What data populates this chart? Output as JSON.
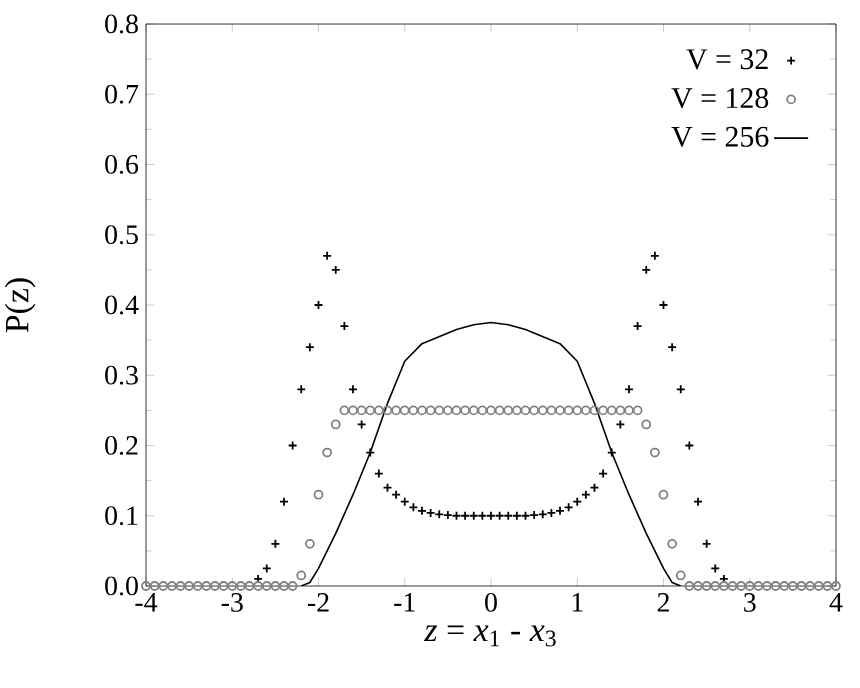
{
  "chart_data": {
    "type": "scatter",
    "xlabel": "*z* = *x*$_{1}$ - *x*$_{3}$",
    "ylabel": "P(z)",
    "xlim": [
      -4,
      4
    ],
    "ylim": [
      0,
      0.8
    ],
    "xticks": [
      -4,
      -3,
      -2,
      -1,
      0,
      1,
      2,
      3,
      4
    ],
    "yticks": [
      {
        "value": 0,
        "label": "0.0"
      },
      {
        "value": 0.1,
        "label": "0.1"
      },
      {
        "value": 0.2,
        "label": "0.2"
      },
      {
        "value": 0.3,
        "label": "0.3"
      },
      {
        "value": 0.4,
        "label": "0.4"
      },
      {
        "value": 0.5,
        "label": "0.5"
      },
      {
        "value": 0.6,
        "label": "0.6"
      },
      {
        "value": 0.7,
        "label": "0.7"
      },
      {
        "value": 0.8,
        "label": "0.8"
      }
    ],
    "legend": "top right",
    "grid": false,
    "series": [
      {
        "name": "V = 32",
        "color": "#000000",
        "marker": "cross",
        "x": [
          -2.7,
          -2.6,
          -2.5,
          -2.4,
          -2.3,
          -2.2,
          -2.1,
          -2,
          -1.9,
          -1.8,
          -1.7,
          -1.6,
          -1.5,
          -1.4,
          -1.3,
          -1.2,
          -1.1,
          -1,
          -0.9,
          -0.8,
          -0.7,
          -0.6,
          -0.5,
          -0.4,
          -0.3,
          -0.2,
          -0.1,
          0,
          0.1,
          0.2,
          0.3,
          0.4,
          0.5,
          0.6,
          0.7,
          0.8,
          0.9,
          1,
          1.1,
          1.2,
          1.3,
          1.4,
          1.5,
          1.6,
          1.7,
          1.8,
          1.9,
          2,
          2.1,
          2.2,
          2.3,
          2.4,
          2.5,
          2.6,
          2.7
        ],
        "values": [
          0.01,
          0.025,
          0.06,
          0.12,
          0.2,
          0.28,
          0.34,
          0.4,
          0.47,
          0.45,
          0.37,
          0.28,
          0.23,
          0.19,
          0.16,
          0.14,
          0.13,
          0.12,
          0.112,
          0.107,
          0.104,
          0.102,
          0.101,
          0.1,
          0.1,
          0.1,
          0.1,
          0.1,
          0.1,
          0.1,
          0.1,
          0.1,
          0.101,
          0.102,
          0.104,
          0.107,
          0.112,
          0.12,
          0.13,
          0.14,
          0.16,
          0.19,
          0.23,
          0.28,
          0.37,
          0.45,
          0.47,
          0.4,
          0.34,
          0.28,
          0.2,
          0.12,
          0.06,
          0.025,
          0.01
        ]
      },
      {
        "name": "V = 128",
        "color": "#808080",
        "marker": "circle",
        "x": [
          -4,
          -3.9,
          -3.8,
          -3.7,
          -3.6,
          -3.5,
          -3.4,
          -3.3,
          -3.2,
          -3.1,
          -3,
          -2.9,
          -2.8,
          -2.7,
          -2.6,
          -2.5,
          -2.4,
          -2.3,
          -2.2,
          -2.1,
          -2,
          -1.9,
          -1.8,
          -1.7,
          -1.6,
          -1.5,
          -1.4,
          -1.3,
          -1.2,
          -1.1,
          -1,
          -0.9,
          -0.8,
          -0.7,
          -0.6,
          -0.5,
          -0.4,
          -0.3,
          -0.2,
          -0.1,
          0,
          0.1,
          0.2,
          0.3,
          0.4,
          0.5,
          0.6,
          0.7,
          0.8,
          0.9,
          1,
          1.1,
          1.2,
          1.3,
          1.4,
          1.5,
          1.6,
          1.7,
          1.8,
          1.9,
          2,
          2.1,
          2.2,
          2.3,
          2.4,
          2.5,
          2.6,
          2.7,
          2.8,
          2.9,
          3,
          3.1,
          3.2,
          3.3,
          3.4,
          3.5,
          3.6,
          3.7,
          3.8,
          3.9,
          4
        ],
        "values": [
          0,
          0,
          0,
          0,
          0,
          0,
          0,
          0,
          0,
          0,
          0,
          0,
          0,
          0,
          0,
          0,
          0,
          0,
          0.015,
          0.06,
          0.13,
          0.19,
          0.23,
          0.25,
          0.25,
          0.25,
          0.25,
          0.25,
          0.25,
          0.25,
          0.25,
          0.25,
          0.25,
          0.25,
          0.25,
          0.25,
          0.25,
          0.25,
          0.25,
          0.25,
          0.25,
          0.25,
          0.25,
          0.25,
          0.25,
          0.25,
          0.25,
          0.25,
          0.25,
          0.25,
          0.25,
          0.25,
          0.25,
          0.25,
          0.25,
          0.25,
          0.25,
          0.25,
          0.23,
          0.19,
          0.13,
          0.06,
          0.015,
          0,
          0,
          0,
          0,
          0,
          0,
          0,
          0,
          0,
          0,
          0,
          0,
          0,
          0,
          0,
          0,
          0,
          0
        ]
      },
      {
        "name": "V = 256",
        "color": "#000000",
        "type": "line",
        "marker": "none",
        "x": [
          -2.2,
          -2.1,
          -2,
          -1.8,
          -1.6,
          -1.4,
          -1.2,
          -1,
          -0.8,
          -0.6,
          -0.4,
          -0.2,
          0,
          0.2,
          0.4,
          0.6,
          0.8,
          1,
          1.2,
          1.4,
          1.6,
          1.8,
          2,
          2.1,
          2.2
        ],
        "values": [
          0,
          0.005,
          0.025,
          0.075,
          0.13,
          0.19,
          0.26,
          0.32,
          0.345,
          0.355,
          0.365,
          0.372,
          0.375,
          0.372,
          0.365,
          0.355,
          0.345,
          0.32,
          0.26,
          0.19,
          0.13,
          0.075,
          0.025,
          0.005,
          0
        ]
      }
    ]
  }
}
